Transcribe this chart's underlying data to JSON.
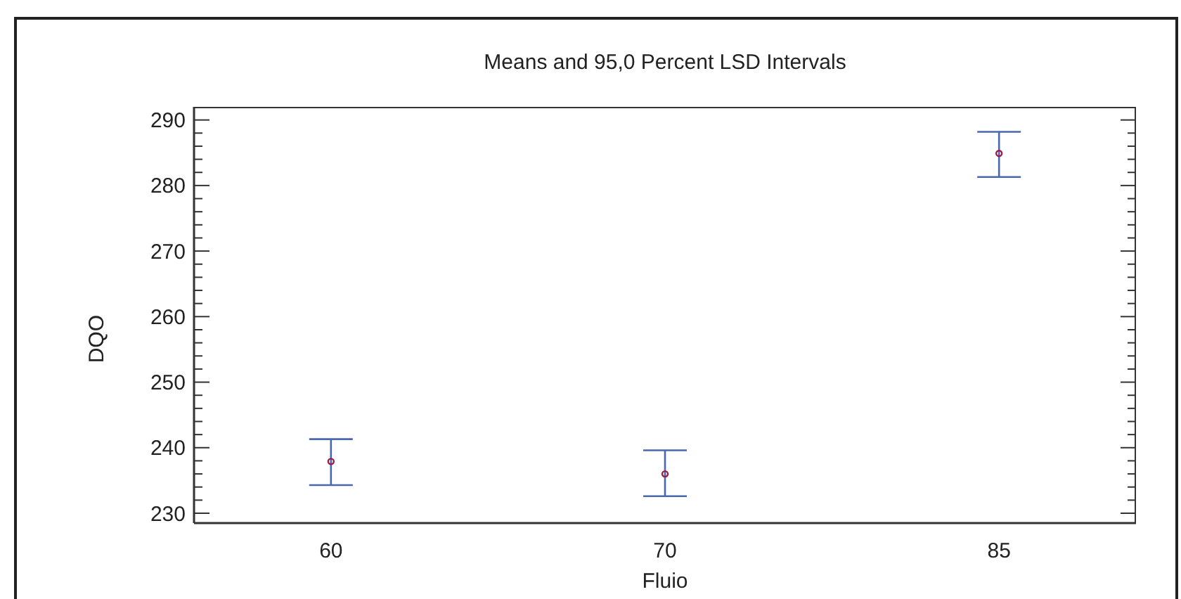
{
  "chart_data": {
    "type": "scatter",
    "title": "Means and 95,0 Percent LSD Intervals",
    "xlabel": "Fluio",
    "ylabel": "DQO",
    "categories": [
      "60",
      "70",
      "85"
    ],
    "values": [
      237.9,
      236.0,
      284.9
    ],
    "errors": [
      [
        234.3,
        241.3
      ],
      [
        232.6,
        239.6
      ],
      [
        281.3,
        288.2
      ]
    ],
    "color": "#9b1b4b",
    "marker": "circle",
    "ylim": [
      228.5,
      292
    ],
    "yticks": [
      {
        "value": 230,
        "label": "230"
      },
      {
        "value": 232,
        "label": null
      },
      {
        "value": 234,
        "label": null
      },
      {
        "value": 236,
        "label": null
      },
      {
        "value": 238,
        "label": null
      },
      {
        "value": 240,
        "label": "240"
      },
      {
        "value": 242,
        "label": null
      },
      {
        "value": 244,
        "label": null
      },
      {
        "value": 246,
        "label": null
      },
      {
        "value": 248,
        "label": null
      },
      {
        "value": 250,
        "label": "250"
      },
      {
        "value": 252,
        "label": null
      },
      {
        "value": 254,
        "label": null
      },
      {
        "value": 256,
        "label": null
      },
      {
        "value": 258,
        "label": null
      },
      {
        "value": 260,
        "label": "260"
      },
      {
        "value": 262,
        "label": null
      },
      {
        "value": 264,
        "label": null
      },
      {
        "value": 266,
        "label": null
      },
      {
        "value": 268,
        "label": null
      },
      {
        "value": 270,
        "label": "270"
      },
      {
        "value": 272,
        "label": null
      },
      {
        "value": 274,
        "label": null
      },
      {
        "value": 276,
        "label": null
      },
      {
        "value": 278,
        "label": null
      },
      {
        "value": 280,
        "label": "280"
      },
      {
        "value": 282,
        "label": null
      },
      {
        "value": 284,
        "label": null
      },
      {
        "value": 286,
        "label": null
      },
      {
        "value": 288,
        "label": null
      },
      {
        "value": 290,
        "label": "290"
      }
    ]
  }
}
